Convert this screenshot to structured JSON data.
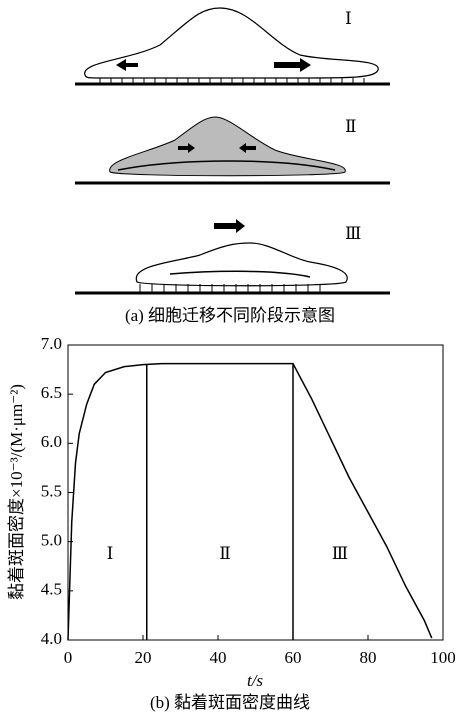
{
  "diagram": {
    "stages": [
      "Ⅰ",
      "Ⅱ",
      "Ⅲ"
    ],
    "caption": "(a) 细胞迁移不同阶段示意图"
  },
  "chart_data": {
    "type": "line",
    "caption": "(b) 黏着斑面密度曲线",
    "x_label": "t/s",
    "y_label": "黏着斑面密度×10⁻³/(M·μm⁻²)",
    "phases": [
      "Ⅰ",
      "Ⅱ",
      "Ⅲ"
    ],
    "boundaries": [
      21,
      60
    ],
    "x": [
      0,
      1,
      2,
      3,
      5,
      7,
      10,
      15,
      20,
      25,
      30,
      40,
      50,
      60,
      65,
      70,
      75,
      80,
      85,
      90,
      95,
      97
    ],
    "series": [
      {
        "color": "#000000",
        "values": [
          4.0,
          5.2,
          5.8,
          6.1,
          6.4,
          6.6,
          6.72,
          6.78,
          6.8,
          6.81,
          6.81,
          6.81,
          6.81,
          6.81,
          6.45,
          6.05,
          5.65,
          5.3,
          4.95,
          4.55,
          4.2,
          4.02
        ]
      }
    ],
    "xlim": [
      0,
      100
    ],
    "ylim": [
      4,
      7
    ],
    "xticks": [
      0,
      20,
      40,
      60,
      80,
      100
    ],
    "yticks": [
      {
        "value": 4,
        "label": "4.0"
      },
      {
        "value": 4.5,
        "label": "4.5"
      },
      {
        "value": 5,
        "label": "5.0"
      },
      {
        "value": 5.5,
        "label": "5.5"
      },
      {
        "value": 6,
        "label": "6.0"
      },
      {
        "value": 6.5,
        "label": "6.5"
      },
      {
        "value": 7,
        "label": "7.0"
      }
    ]
  }
}
